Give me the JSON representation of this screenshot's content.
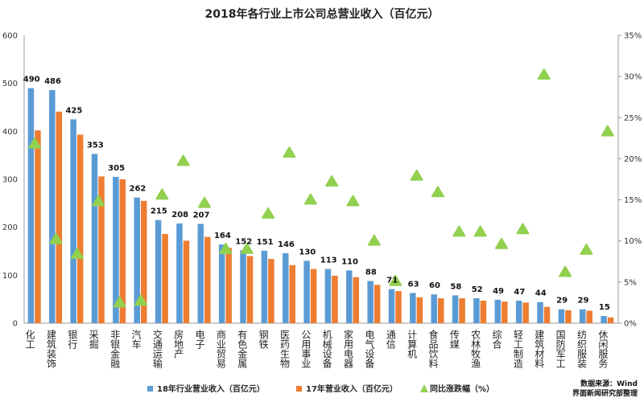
{
  "chart_data": {
    "type": "bar",
    "title": "2018年各行业上市公司总营业收入（百亿元）",
    "categories": [
      "化工",
      "建筑装饰",
      "银行",
      "采掘",
      "非银金融",
      "汽车",
      "交通运输",
      "房地产",
      "电子",
      "商业贸易",
      "有色金属",
      "钢铁",
      "医药生物",
      "公用事业",
      "机械设备",
      "家用电器",
      "电气设备",
      "通信",
      "计算机",
      "食品饮料",
      "传媒",
      "农林牧渔",
      "综合",
      "轻工制造",
      "建筑材料",
      "国防军工",
      "纺织服装",
      "休闲服务"
    ],
    "series": [
      {
        "name": "18年行业营业收入（百亿元）",
        "color": "#5b9bd5",
        "axis": "left",
        "values": [
          490,
          486,
          425,
          353,
          305,
          262,
          215,
          208,
          207,
          164,
          152,
          151,
          146,
          130,
          113,
          110,
          88,
          71,
          63,
          60,
          58,
          52,
          49,
          47,
          44,
          29,
          29,
          15
        ]
      },
      {
        "name": "17年营业收入（百亿元）",
        "color": "#ed7d31",
        "axis": "left",
        "values": [
          402,
          441,
          393,
          306,
          300,
          255,
          186,
          172,
          180,
          157,
          140,
          134,
          121,
          113,
          99,
          96,
          80,
          67,
          54,
          52,
          52,
          47,
          45,
          43,
          34,
          27,
          26,
          12
        ]
      },
      {
        "name": "同比涨跌幅（%）",
        "color": "#92d050",
        "axis": "right",
        "marker": "triangle",
        "values": [
          21.8,
          10.2,
          8.4,
          14.8,
          2.5,
          2.7,
          15.6,
          19.7,
          14.6,
          9.0,
          9.0,
          13.3,
          20.7,
          15.0,
          17.2,
          14.8,
          10.0,
          5.1,
          17.9,
          15.9,
          11.1,
          11.1,
          9.6,
          11.4,
          30.2,
          6.2,
          8.9,
          23.3
        ]
      }
    ],
    "ylim": [
      0,
      600
    ],
    "yticks": [
      "0",
      "100",
      "200",
      "300",
      "400",
      "500",
      "600"
    ],
    "y2lim": [
      0,
      35
    ],
    "y2ticks": [
      "0%",
      "5%",
      "10%",
      "15%",
      "20%",
      "25%",
      "30%",
      "35%"
    ],
    "legend_position": "bottom",
    "source_lines": [
      "数据来源：Wind",
      "界面新闻研究部整理"
    ]
  }
}
